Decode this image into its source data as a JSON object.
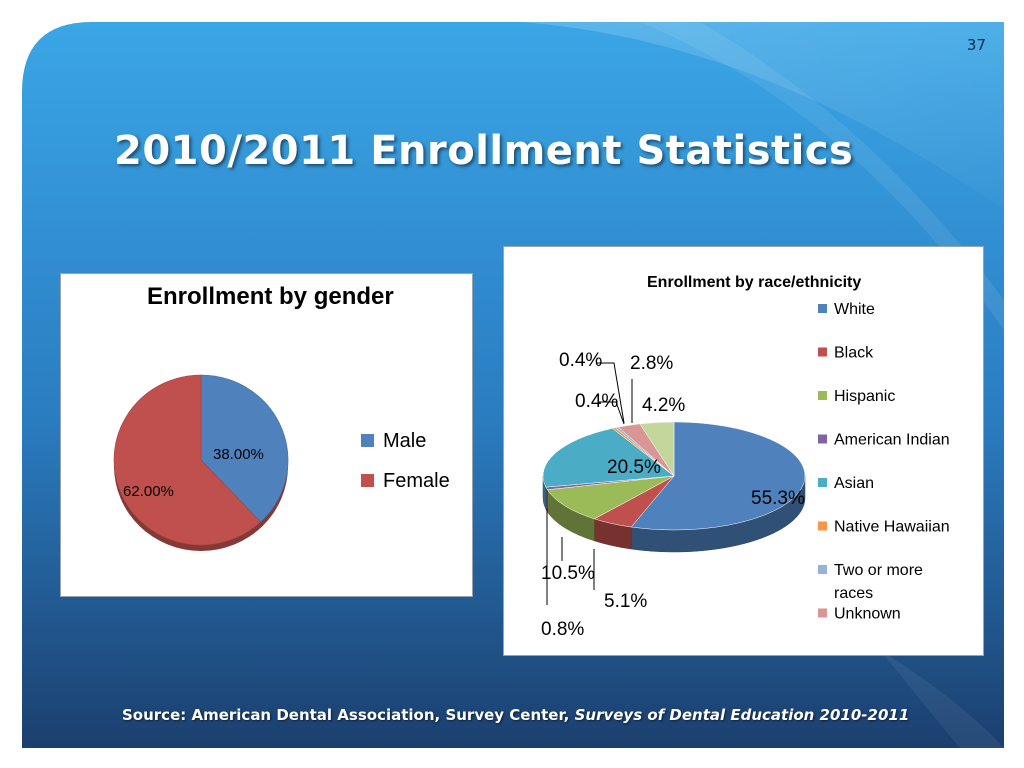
{
  "page_number": "37",
  "title": "2010/2011 Enrollment  Statistics",
  "source": {
    "label": "Source:  American Dental Association, Survey Center, ",
    "publication": "Surveys of Dental Education 2010-2011"
  },
  "colors": {
    "bg_light": "#3aa6e6",
    "bg_dark": "#1b3f6e",
    "male": "#4f81bd",
    "female": "#c0504d",
    "white": "#4f81bd",
    "black": "#c0504d",
    "hispanic": "#9bbb59",
    "american_indian": "#8064a2",
    "asian": "#4bacc6",
    "native_hawaiian": "#f79646",
    "two_or_more": "#95b3d7",
    "unknown": "#d99694",
    "extra": "#c3d69b"
  },
  "chart_data": [
    {
      "type": "pie",
      "title": "Enrollment by gender",
      "categories": [
        "Male",
        "Female"
      ],
      "values": [
        38.0,
        62.0
      ],
      "data_labels": [
        "38.00%",
        "62.00%"
      ],
      "legend": {
        "position": "right",
        "entries": [
          "Male",
          "Female"
        ]
      }
    },
    {
      "type": "pie",
      "title": "Enrollment  by race/ethnicity",
      "categories": [
        "White",
        "Black",
        "Hispanic",
        "American Indian",
        "Asian",
        "Native Hawaiian",
        "Two or more races",
        "Unknown",
        ""
      ],
      "values": [
        55.3,
        5.1,
        10.5,
        0.8,
        20.5,
        0.4,
        0.4,
        2.8,
        4.2
      ],
      "data_labels": [
        "55.3%",
        "5.1%",
        "10.5%",
        "0.8%",
        "20.5%",
        "0.4%",
        "0.4%",
        "2.8%",
        "4.2%"
      ],
      "legend": {
        "position": "right",
        "entries": [
          "White",
          "Black",
          "Hispanic",
          "American Indian",
          "Asian",
          "Native Hawaiian",
          "Two or more races",
          "Unknown"
        ]
      }
    }
  ]
}
